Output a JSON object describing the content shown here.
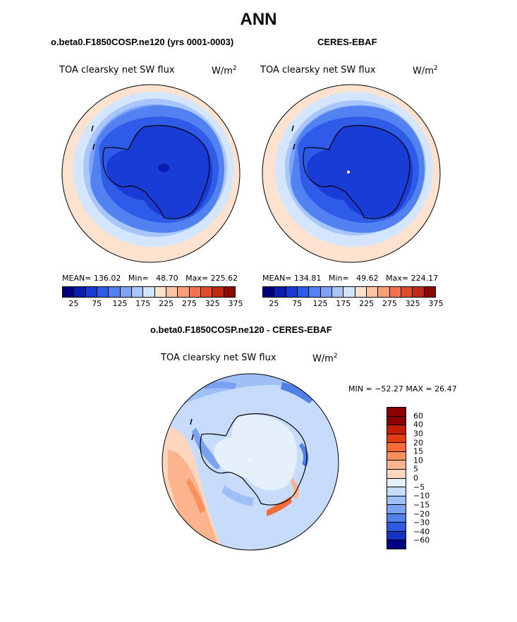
{
  "title": "ANN",
  "panels": [
    {
      "title": "o.beta0.F1850COSP.ne120 (yrs 0001-0003)",
      "variable": "TOA clearsky net SW flux",
      "units_base": "W/m",
      "units_exp": "2",
      "mean_label": "MEAN=",
      "mean": "136.02",
      "min_label": "Min=",
      "min": "48.70",
      "max_label": "Max=",
      "max": "225.62",
      "tick_labels": [
        "25",
        "75",
        "125",
        "175",
        "225",
        "275",
        "325",
        "375"
      ]
    },
    {
      "title": "CERES-EBAF",
      "variable": "TOA clearsky net SW flux",
      "units_base": "W/m",
      "units_exp": "2",
      "mean_label": "MEAN=",
      "mean": "134.81",
      "min_label": "Min=",
      "min": "49.62",
      "max_label": "Max=",
      "max": "224.17",
      "tick_labels": [
        "25",
        "75",
        "125",
        "175",
        "225",
        "275",
        "325",
        "375"
      ]
    }
  ],
  "difference": {
    "title": "o.beta0.F1850COSP.ne120 - CERES-EBAF",
    "variable": "TOA clearsky net SW flux",
    "units_base": "W/m",
    "units_exp": "2",
    "stats": "MIN = −52.27 MAX =  26.47",
    "levels": [
      "60",
      "40",
      "30",
      "20",
      "15",
      "10",
      "5",
      "0",
      "−5",
      "−10",
      "−15",
      "−20",
      "−30",
      "−40",
      "−60"
    ]
  },
  "colors": {
    "seq": [
      "#00007a",
      "#0a1eb0",
      "#1a3cd6",
      "#2e5ce8",
      "#5282f2",
      "#7ea4f6",
      "#a9c6fa",
      "#d4e6fd",
      "#fde3cf",
      "#fcc2a2",
      "#fa9e78",
      "#f57150",
      "#e24a2c",
      "#c02a14",
      "#8c0a04"
    ],
    "div": [
      "#8c0000",
      "#c21e00",
      "#e23c10",
      "#f56a36",
      "#fa8f5e",
      "#fcb48e",
      "#fdd6bd",
      "#e6f0fb",
      "#c6dcfa",
      "#9fc0f6",
      "#7aa2f1",
      "#5080ea",
      "#2e5ce0",
      "#1433c2",
      "#000080"
    ],
    "land_outline": "#000000"
  }
}
